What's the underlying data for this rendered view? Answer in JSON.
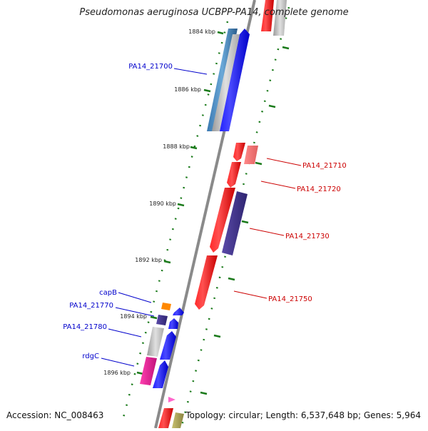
{
  "title": "Pseudomonas aeruginosa UCBPP-PA14, complete genome",
  "accession": "Accession: NC_008463",
  "topology": "Topology: circular; Length: 6,537,648 bp; Genes: 5,964",
  "colors": {
    "backbone": "#8a8a8a",
    "tick": "#1a7a1a",
    "left_label": "#0000cc",
    "right_label": "#cc0000",
    "forward_gene": "#0000ee",
    "reverse_gene": "#ee0000"
  },
  "kbp_ticks": [
    "1884 kbp",
    "1886 kbp",
    "1888 kbp",
    "1890 kbp",
    "1892 kbp",
    "1894 kbp",
    "1896 kbp"
  ],
  "left_labels": [
    "PA14_21700",
    "capB",
    "PA14_21770",
    "PA14_21780",
    "rdgC"
  ],
  "right_labels": [
    "PA14_21710",
    "PA14_21720",
    "PA14_21730",
    "PA14_21750"
  ]
}
